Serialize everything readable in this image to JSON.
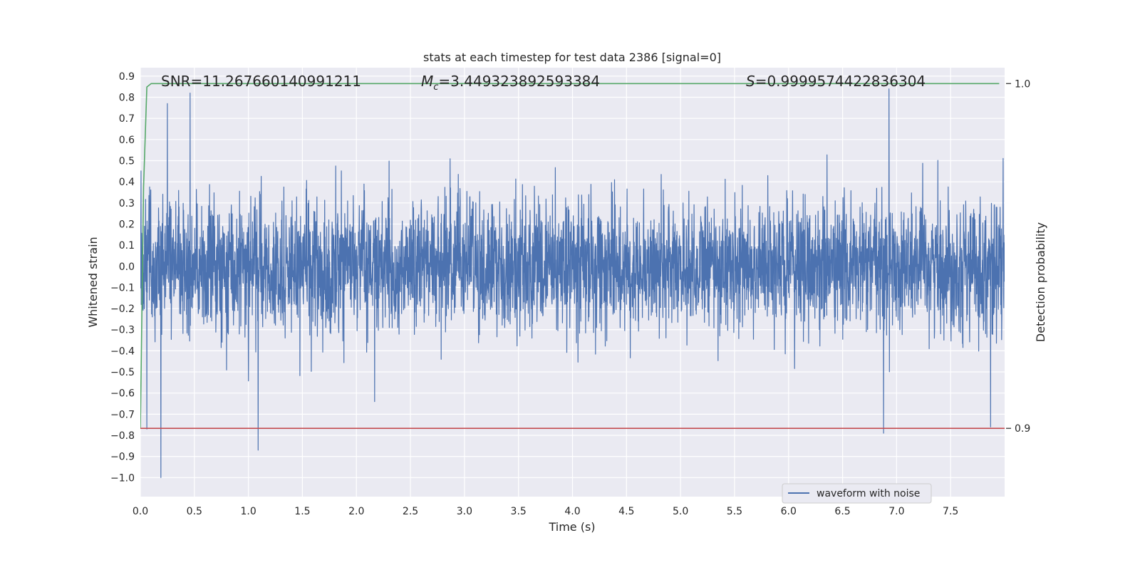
{
  "chart_data": {
    "type": "line",
    "title": "stats at each timestep for test data 2386 [signal=0]",
    "xlabel": "Time (s)",
    "ylabel": "Whitened strain",
    "ylabel_right": "Detection probability",
    "xlim": [
      0.0,
      8.0
    ],
    "ylim": [
      -1.09,
      0.94
    ],
    "ylim_right": [
      0.8802,
      1.0046
    ],
    "x_ticks": [
      "0.0",
      "0.5",
      "1.0",
      "1.5",
      "2.0",
      "2.5",
      "3.0",
      "3.5",
      "4.0",
      "4.5",
      "5.0",
      "5.5",
      "6.0",
      "6.5",
      "7.0",
      "7.5"
    ],
    "x_tick_values": [
      0.0,
      0.5,
      1.0,
      1.5,
      2.0,
      2.5,
      3.0,
      3.5,
      4.0,
      4.5,
      5.0,
      5.5,
      6.0,
      6.5,
      7.0,
      7.5
    ],
    "y_ticks": [
      "0.9",
      "0.8",
      "0.7",
      "0.6",
      "0.5",
      "0.4",
      "0.3",
      "0.2",
      "0.1",
      "0.0",
      "−0.1",
      "−0.2",
      "−0.3",
      "−0.4",
      "−0.5",
      "−0.6",
      "−0.7",
      "−0.8",
      "−0.9",
      "−1.0"
    ],
    "y_tick_values": [
      0.9,
      0.8,
      0.7,
      0.6,
      0.5,
      0.4,
      0.3,
      0.2,
      0.1,
      0.0,
      -0.1,
      -0.2,
      -0.3,
      -0.4,
      -0.5,
      -0.6,
      -0.7,
      -0.8,
      -0.9,
      -1.0
    ],
    "y_ticks_right": [
      "1.0",
      "0.9"
    ],
    "y_tick_values_right": [
      1.0,
      0.9
    ],
    "annotations": {
      "snr": "SNR=11.267660140991211",
      "mc_symbol": "M",
      "mc_sub": "c",
      "mc_value": "=3.449323892593384",
      "s_symbol": "S",
      "s_value": "=0.9999574422836304"
    },
    "series": [
      {
        "name": "waveform with noise",
        "color": "#4c72b0",
        "kind": "noise",
        "x_range": [
          0.0,
          8.0
        ],
        "amplitude_range": [
          -1.0,
          0.85
        ],
        "typical_std": 0.15,
        "notable_peaks": [
          {
            "x": 0.46,
            "y": 0.82
          },
          {
            "x": 0.25,
            "y": 0.77
          },
          {
            "x": 6.93,
            "y": 0.84
          },
          {
            "x": 0.19,
            "y": -1.0
          },
          {
            "x": 1.09,
            "y": -0.87
          },
          {
            "x": 6.88,
            "y": -0.79
          },
          {
            "x": 0.06,
            "y": -0.77
          },
          {
            "x": 7.87,
            "y": -0.76
          }
        ]
      },
      {
        "color": "#55a868",
        "axis": "right",
        "x": [
          0.0,
          0.03,
          0.06,
          0.1,
          7.95
        ],
        "y": [
          0.9,
          0.97,
          0.999,
          1.0,
          1.0
        ]
      },
      {
        "color": "#c44e52",
        "axis": "right",
        "x": [
          0.0,
          8.0
        ],
        "y": [
          0.9,
          0.9
        ]
      }
    ],
    "legend": {
      "placement": "lower-right",
      "entries": [
        "waveform with noise"
      ]
    },
    "grid": true,
    "style": {
      "plot_background": "#eaeaf2",
      "grid_color": "#ffffff"
    }
  }
}
